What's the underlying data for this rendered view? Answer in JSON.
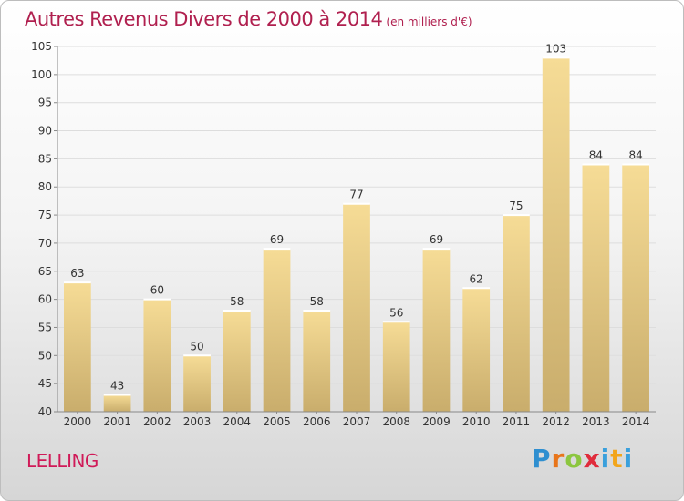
{
  "title": "Autres Revenus Divers de 2000 à 2014",
  "subtitle": "(en milliers d'€)",
  "place": "LELLING",
  "logo": "Proxiti",
  "colors": {
    "title": "#b0204f",
    "bar_top": "#f6dc96",
    "bar_bottom": "#c9ad6c"
  },
  "chart_data": {
    "type": "bar",
    "title": "Autres Revenus Divers de 2000 à 2014",
    "xlabel": "",
    "ylabel": "",
    "categories": [
      "2000",
      "2001",
      "2002",
      "2003",
      "2004",
      "2005",
      "2006",
      "2007",
      "2008",
      "2009",
      "2010",
      "2011",
      "2012",
      "2013",
      "2014"
    ],
    "values": [
      63,
      43,
      60,
      50,
      58,
      69,
      58,
      77,
      56,
      69,
      62,
      75,
      103,
      84,
      84
    ],
    "ylim": [
      40,
      105
    ],
    "yticks": [
      40,
      45,
      50,
      55,
      60,
      65,
      70,
      75,
      80,
      85,
      90,
      95,
      100,
      105
    ],
    "grid": "horizontal",
    "data_labels": true
  }
}
